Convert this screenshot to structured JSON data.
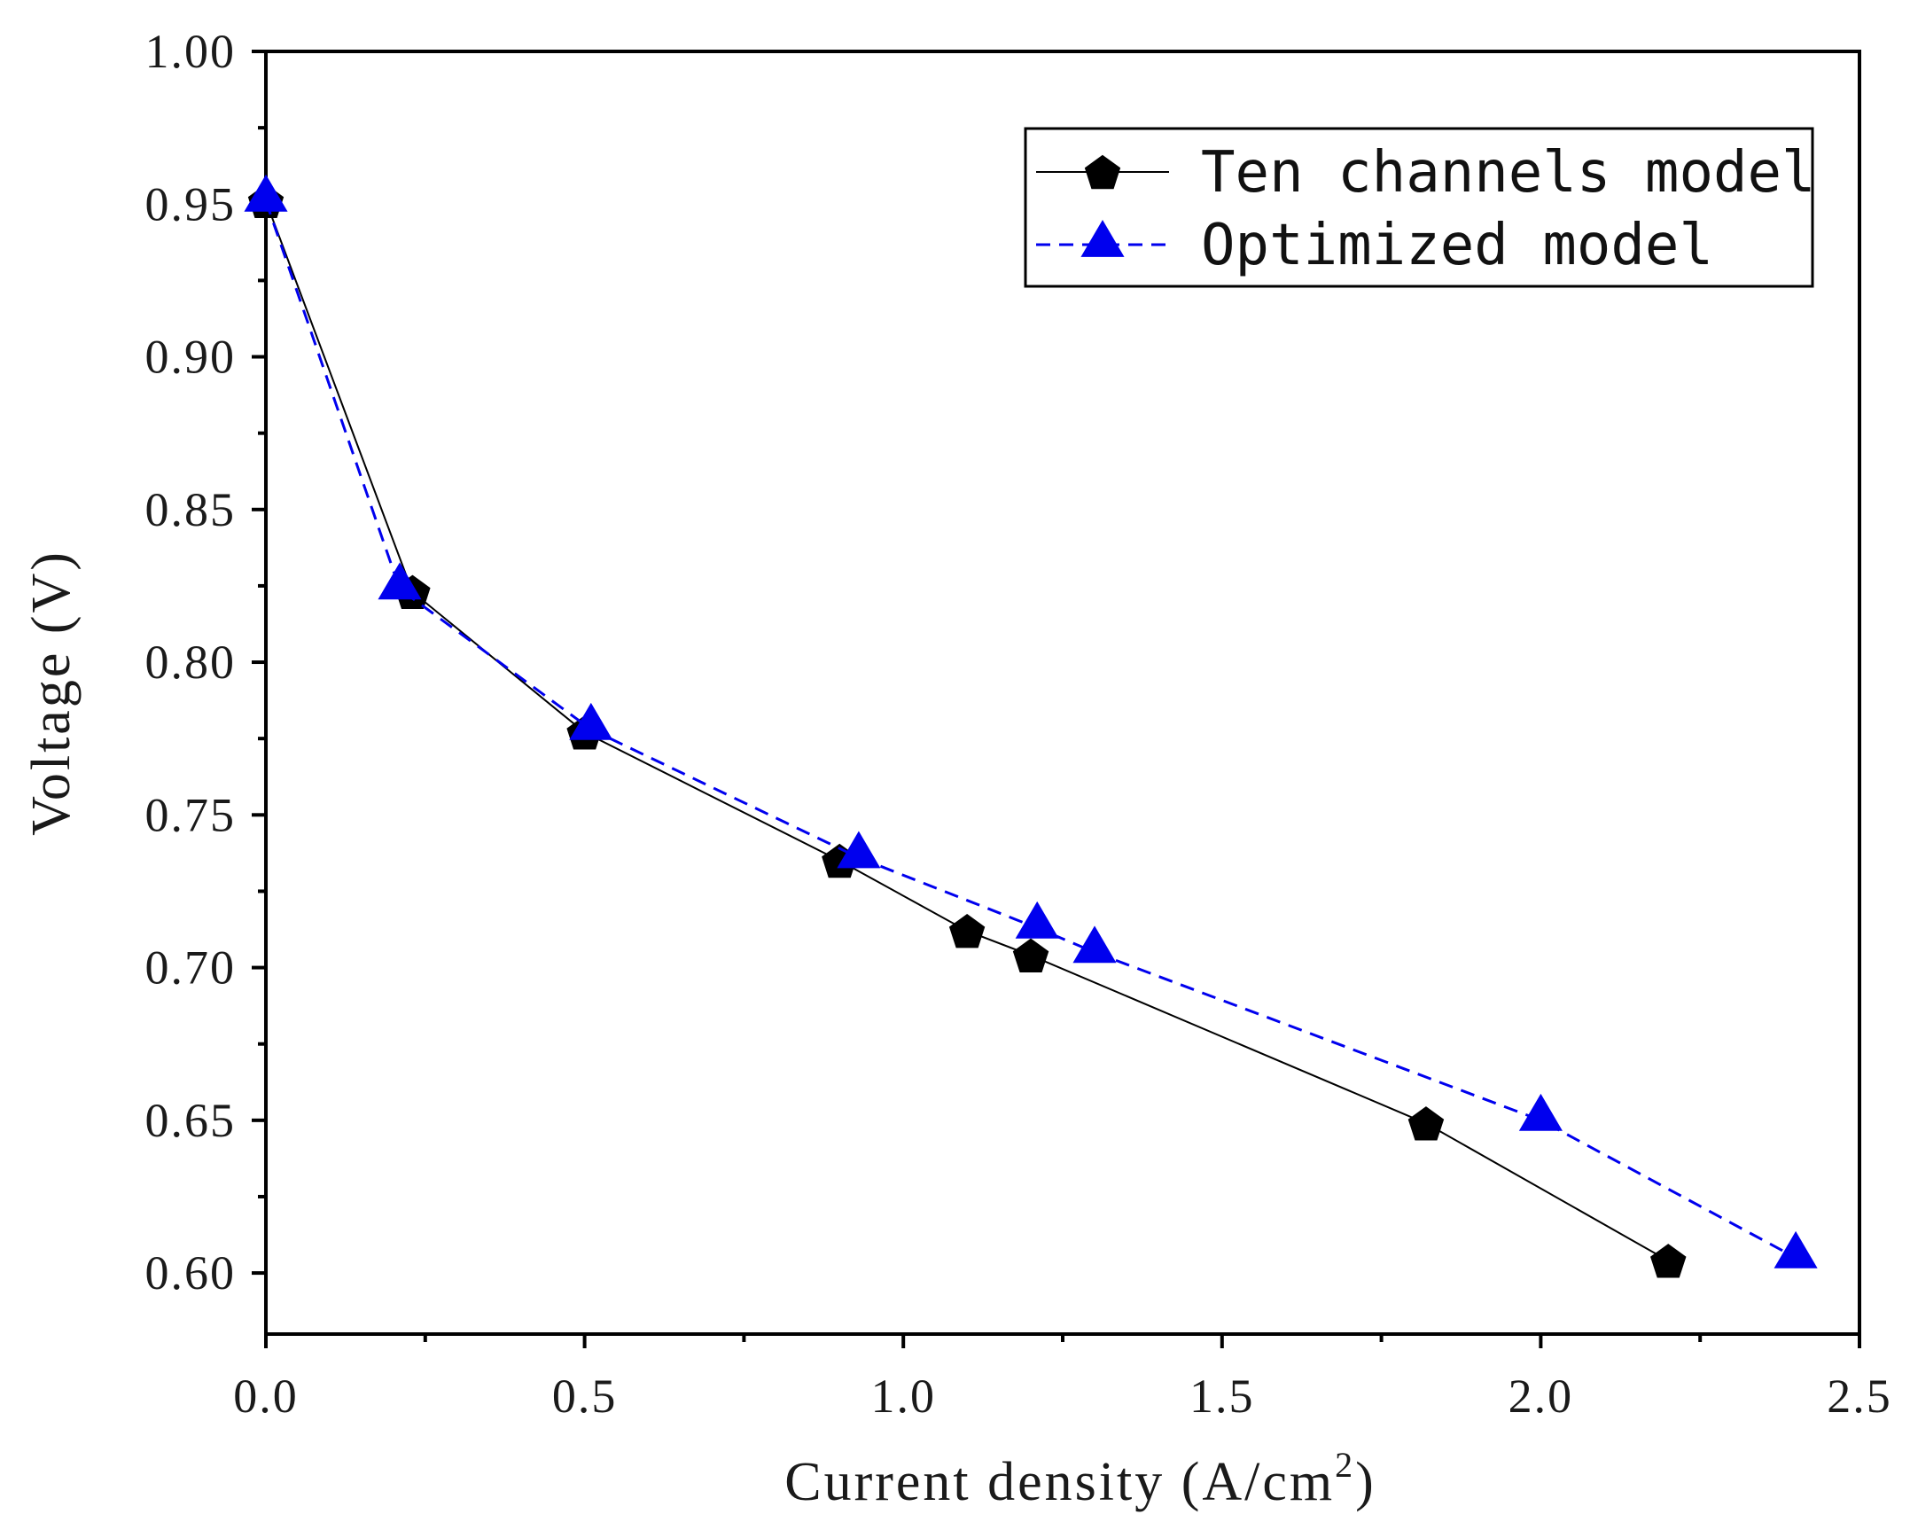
{
  "chart_data": {
    "type": "line",
    "xlabel": "Current density (A/cm",
    "xlabel_sup": "2",
    "xlabel_tail": ")",
    "ylabel": "Voltage (V)",
    "xlim": [
      0.0,
      2.5
    ],
    "ylim": [
      0.58,
      1.0
    ],
    "x_ticks": [
      0.0,
      0.5,
      1.0,
      1.5,
      2.0,
      2.5
    ],
    "x_tick_labels": [
      "0.0",
      "0.5",
      "1.0",
      "1.5",
      "2.0",
      "2.5"
    ],
    "y_ticks": [
      0.6,
      0.65,
      0.7,
      0.75,
      0.8,
      0.85,
      0.9,
      0.95,
      1.0
    ],
    "y_tick_labels": [
      "0.60",
      "0.65",
      "0.70",
      "0.75",
      "0.80",
      "0.85",
      "0.90",
      "0.95",
      "1.00"
    ],
    "grid": false,
    "legend_position": "top-right",
    "series": [
      {
        "name": "Ten channels model",
        "color": "#000000",
        "line_style": "solid",
        "marker": "pentagon",
        "x": [
          0.0,
          0.23,
          0.5,
          0.9,
          1.1,
          1.2,
          1.82,
          2.2
        ],
        "y": [
          0.951,
          0.823,
          0.777,
          0.735,
          0.712,
          0.704,
          0.649,
          0.604
        ]
      },
      {
        "name": "Optimized model",
        "color": "#0000ee",
        "line_style": "dashed",
        "marker": "triangle",
        "x": [
          0.0,
          0.21,
          0.51,
          0.93,
          1.21,
          1.3,
          2.0,
          2.4
        ],
        "y": [
          0.951,
          0.824,
          0.778,
          0.736,
          0.713,
          0.705,
          0.65,
          0.605
        ]
      }
    ]
  }
}
